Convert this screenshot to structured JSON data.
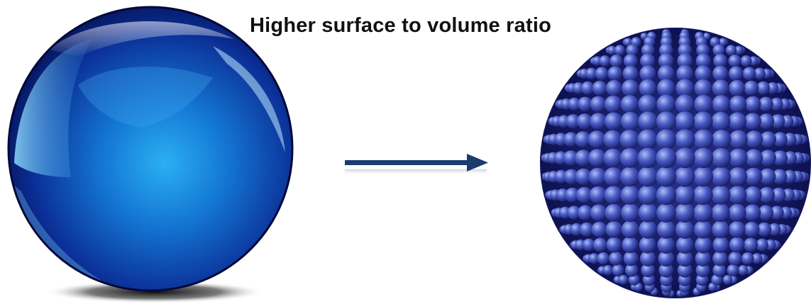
{
  "caption": "Higher surface to volume ratio",
  "colors": {
    "sphere_dark": "#06105a",
    "sphere_mid": "#1149b8",
    "sphere_light": "#27a7ee",
    "arrow": "#1a3c6e",
    "nanoparticle": "#3f4fb8",
    "nanoparticle_highlight": "#aebcf5",
    "nanoparticle_shadow": "#14185e"
  },
  "icons": {
    "large_sphere": "glossy-sphere-icon",
    "arrow": "right-arrow-icon",
    "nano_sphere": "nanoparticle-cluster-icon"
  }
}
